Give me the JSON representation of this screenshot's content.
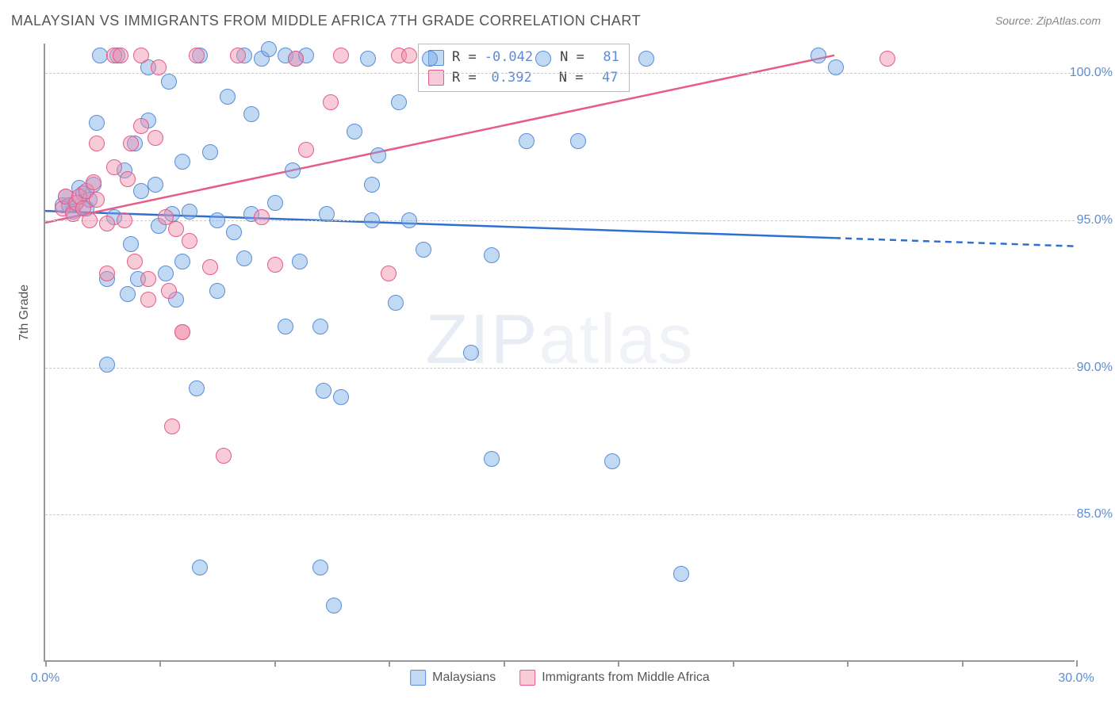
{
  "title": "MALAYSIAN VS IMMIGRANTS FROM MIDDLE AFRICA 7TH GRADE CORRELATION CHART",
  "source": "Source: ZipAtlas.com",
  "watermark_a": "ZIP",
  "watermark_b": "atlas",
  "y_axis_label": "7th Grade",
  "chart": {
    "type": "scatter",
    "xlim": [
      0,
      30
    ],
    "ylim": [
      80,
      101
    ],
    "x_ticks": [
      0,
      3.33,
      6.67,
      10,
      13.33,
      16.67,
      20,
      23.33,
      26.67,
      30
    ],
    "x_tick_labels": {
      "0": "0.0%",
      "30": "30.0%"
    },
    "y_ticks": [
      85,
      90,
      95,
      100
    ],
    "y_tick_labels": {
      "85": "85.0%",
      "90": "90.0%",
      "95": "95.0%",
      "100": "100.0%"
    },
    "grid_color": "#cccccc",
    "axis_color": "#999999",
    "background_color": "#ffffff",
    "series": [
      {
        "name": "Malaysians",
        "fill": "rgba(120,170,230,0.45)",
        "stroke": "#5b8dd6",
        "R": "-0.042",
        "N": "81",
        "trend": {
          "x1": 0,
          "y1": 95.3,
          "x2": 30,
          "y2": 94.1,
          "solid_until_x": 23,
          "color": "#2f6fd0",
          "width": 2.5
        },
        "points": [
          [
            0.5,
            95.5
          ],
          [
            0.6,
            95.8
          ],
          [
            0.7,
            95.5
          ],
          [
            0.8,
            95.3
          ],
          [
            0.9,
            95.6
          ],
          [
            1.0,
            96.1
          ],
          [
            1.1,
            95.9
          ],
          [
            1.2,
            95.4
          ],
          [
            1.3,
            95.7
          ],
          [
            1.4,
            96.2
          ],
          [
            1.5,
            98.3
          ],
          [
            1.6,
            100.6
          ],
          [
            1.8,
            93.0
          ],
          [
            1.8,
            90.1
          ],
          [
            2.0,
            95.1
          ],
          [
            2.1,
            100.6
          ],
          [
            2.3,
            96.7
          ],
          [
            2.4,
            92.5
          ],
          [
            2.5,
            94.2
          ],
          [
            2.6,
            97.6
          ],
          [
            2.7,
            93.0
          ],
          [
            2.8,
            96.0
          ],
          [
            3.0,
            100.2
          ],
          [
            3.0,
            98.4
          ],
          [
            3.2,
            96.2
          ],
          [
            3.3,
            94.8
          ],
          [
            3.5,
            93.2
          ],
          [
            3.6,
            99.7
          ],
          [
            3.7,
            95.2
          ],
          [
            3.8,
            92.3
          ],
          [
            4.0,
            97.0
          ],
          [
            4.0,
            93.6
          ],
          [
            4.2,
            95.3
          ],
          [
            4.4,
            89.3
          ],
          [
            4.5,
            100.6
          ],
          [
            4.5,
            83.2
          ],
          [
            4.8,
            97.3
          ],
          [
            5.0,
            95.0
          ],
          [
            5.0,
            92.6
          ],
          [
            5.3,
            99.2
          ],
          [
            5.5,
            94.6
          ],
          [
            5.8,
            100.6
          ],
          [
            5.8,
            93.7
          ],
          [
            6.0,
            98.6
          ],
          [
            6.0,
            95.2
          ],
          [
            6.3,
            100.5
          ],
          [
            6.5,
            100.8
          ],
          [
            6.7,
            95.6
          ],
          [
            7.0,
            100.6
          ],
          [
            7.0,
            91.4
          ],
          [
            7.2,
            96.7
          ],
          [
            7.3,
            100.5
          ],
          [
            7.4,
            93.6
          ],
          [
            7.6,
            100.6
          ],
          [
            8.0,
            91.4
          ],
          [
            8.0,
            83.2
          ],
          [
            8.1,
            89.2
          ],
          [
            8.2,
            95.2
          ],
          [
            8.4,
            81.9
          ],
          [
            8.6,
            89.0
          ],
          [
            9.0,
            98.0
          ],
          [
            9.4,
            100.5
          ],
          [
            9.5,
            95.0
          ],
          [
            9.5,
            96.2
          ],
          [
            9.7,
            97.2
          ],
          [
            10.2,
            92.2
          ],
          [
            10.3,
            99.0
          ],
          [
            10.6,
            95.0
          ],
          [
            11.0,
            94.0
          ],
          [
            11.2,
            100.5
          ],
          [
            12.4,
            90.5
          ],
          [
            13.0,
            93.8
          ],
          [
            13.0,
            86.9
          ],
          [
            14.0,
            97.7
          ],
          [
            14.5,
            100.5
          ],
          [
            15.5,
            97.7
          ],
          [
            16.5,
            86.8
          ],
          [
            17.5,
            100.5
          ],
          [
            18.5,
            83.0
          ],
          [
            22.5,
            100.6
          ],
          [
            23.0,
            100.2
          ]
        ]
      },
      {
        "name": "Immigrants from Middle Africa",
        "fill": "rgba(240,140,170,0.45)",
        "stroke": "#e85b87",
        "R": "0.392",
        "N": "47",
        "trend": {
          "x1": 0,
          "y1": 94.9,
          "x2": 23,
          "y2": 100.6,
          "solid_until_x": 23,
          "color": "#e85b87",
          "width": 2.5
        },
        "points": [
          [
            0.5,
            95.4
          ],
          [
            0.6,
            95.8
          ],
          [
            0.8,
            95.2
          ],
          [
            0.9,
            95.6
          ],
          [
            1.0,
            95.8
          ],
          [
            1.1,
            95.4
          ],
          [
            1.2,
            96.0
          ],
          [
            1.3,
            95.0
          ],
          [
            1.4,
            96.3
          ],
          [
            1.5,
            95.7
          ],
          [
            1.5,
            97.6
          ],
          [
            1.8,
            94.9
          ],
          [
            1.8,
            93.2
          ],
          [
            2.0,
            100.6
          ],
          [
            2.0,
            96.8
          ],
          [
            2.2,
            100.6
          ],
          [
            2.3,
            95.0
          ],
          [
            2.4,
            96.4
          ],
          [
            2.5,
            97.6
          ],
          [
            2.6,
            93.6
          ],
          [
            2.8,
            100.6
          ],
          [
            2.8,
            98.2
          ],
          [
            3.0,
            92.3
          ],
          [
            3.0,
            93.0
          ],
          [
            3.2,
            97.8
          ],
          [
            3.3,
            100.2
          ],
          [
            3.5,
            95.1
          ],
          [
            3.6,
            92.6
          ],
          [
            3.7,
            88.0
          ],
          [
            3.8,
            94.7
          ],
          [
            4.0,
            91.2
          ],
          [
            4.0,
            91.2
          ],
          [
            4.2,
            94.3
          ],
          [
            4.4,
            100.6
          ],
          [
            4.8,
            93.4
          ],
          [
            5.2,
            87.0
          ],
          [
            5.6,
            100.6
          ],
          [
            6.3,
            95.1
          ],
          [
            6.7,
            93.5
          ],
          [
            7.3,
            100.5
          ],
          [
            7.6,
            97.4
          ],
          [
            8.3,
            99.0
          ],
          [
            8.6,
            100.6
          ],
          [
            10.0,
            93.2
          ],
          [
            10.3,
            100.6
          ],
          [
            10.6,
            100.6
          ],
          [
            24.5,
            100.5
          ]
        ]
      }
    ]
  },
  "legend_bottom": {
    "items": [
      {
        "label": "Malaysians",
        "fill": "rgba(120,170,230,0.45)",
        "stroke": "#5b8dd6"
      },
      {
        "label": "Immigrants from Middle Africa",
        "fill": "rgba(240,140,170,0.45)",
        "stroke": "#e85b87"
      }
    ]
  },
  "legend_top": {
    "r_label": "R =",
    "n_label": "N ="
  }
}
